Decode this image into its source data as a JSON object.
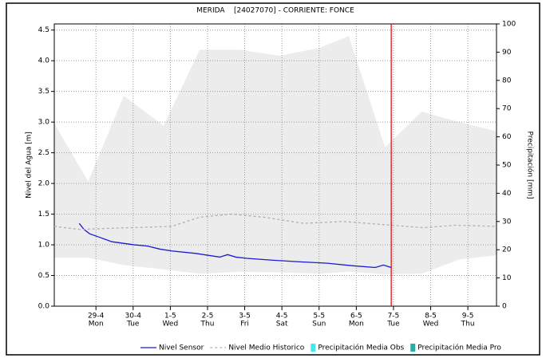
{
  "chart_data": {
    "type": "line",
    "title": "MERIDA    [24027070] - CORRIENTE: FONCE",
    "ylabel": "Nivel del Agua [m]",
    "y2label": "Precipitación [mm]",
    "xlim": [
      -1.12,
      10.77
    ],
    "xticks": [
      {
        "value": 0,
        "label": "29-4"
      },
      {
        "value": 1,
        "label": "30-4"
      },
      {
        "value": 2,
        "label": "1-5"
      },
      {
        "value": 3,
        "label": "2-5"
      },
      {
        "value": 4,
        "label": "3-5"
      },
      {
        "value": 5,
        "label": "4-5"
      },
      {
        "value": 6,
        "label": "5-5"
      },
      {
        "value": 7,
        "label": "6-5"
      },
      {
        "value": 8,
        "label": "7-5"
      },
      {
        "value": 9,
        "label": "8-5"
      },
      {
        "value": 10,
        "label": "9-5"
      }
    ],
    "weekdays": [
      "Mon",
      "Tue",
      "Wed",
      "Thu",
      "Fri",
      "Sat",
      "Sun",
      "Mon",
      "Tue",
      "Wed",
      "Thu"
    ],
    "ylim": [
      0,
      4.6
    ],
    "yticks": [
      {
        "value": 0,
        "label": "0.0"
      },
      0.5,
      {
        "value": 1,
        "label": "1.0"
      },
      1.5,
      {
        "value": 2,
        "label": "2.0"
      },
      2.5,
      {
        "value": 3,
        "label": "3.0"
      },
      3.5,
      {
        "value": 4,
        "label": "4.0"
      },
      4.5
    ],
    "y2lim": [
      0,
      100
    ],
    "y2ticks": [
      0,
      10,
      20,
      30,
      40,
      50,
      60,
      70,
      80,
      90,
      100
    ],
    "grid": true,
    "band": {
      "color": "#ececec",
      "x": [
        -1.12,
        -0.21,
        0.75,
        1.82,
        2.79,
        3.86,
        4.94,
        6.01,
        6.8,
        7.77,
        8.76,
        9.76,
        10.77
      ],
      "upper": [
        2.98,
        2.03,
        3.43,
        2.94,
        4.18,
        4.18,
        4.08,
        4.21,
        4.4,
        2.59,
        3.17,
        3.0,
        2.85
      ],
      "lower": [
        0.79,
        0.79,
        0.67,
        0.6,
        0.53,
        0.56,
        0.55,
        0.53,
        0.56,
        0.52,
        0.53,
        0.76,
        0.83
      ]
    },
    "now_marker": {
      "x": 7.94,
      "color": "#e00000"
    },
    "series": [
      {
        "name": "Nivel Sensor",
        "color": "#1a1ad0",
        "style": "solid",
        "x": [
          -0.45,
          -0.32,
          -0.17,
          0.11,
          0.43,
          1.03,
          1.39,
          1.72,
          2.04,
          2.68,
          3.33,
          3.54,
          3.76,
          4.06,
          4.72,
          5.58,
          6.22,
          6.87,
          7.51,
          7.73,
          7.94
        ],
        "values": [
          1.35,
          1.25,
          1.18,
          1.12,
          1.05,
          1.0,
          0.98,
          0.93,
          0.9,
          0.86,
          0.8,
          0.84,
          0.8,
          0.78,
          0.75,
          0.72,
          0.7,
          0.66,
          0.63,
          0.67,
          0.63
        ]
      },
      {
        "name": "Nivel Medio Historico",
        "color": "#b0b0b0",
        "style": "dashed",
        "x": [
          -1.12,
          -0.43,
          0.43,
          2.04,
          2.79,
          3.65,
          4.51,
          5.58,
          6.65,
          7.94,
          8.8,
          9.66,
          10.77
        ],
        "values": [
          1.3,
          1.25,
          1.27,
          1.3,
          1.45,
          1.5,
          1.45,
          1.35,
          1.38,
          1.32,
          1.28,
          1.32,
          1.3
        ]
      },
      {
        "name": "Precipitación Media Obs",
        "color": "#40e8f0",
        "style": "box",
        "axis": "y2",
        "x": [],
        "values": []
      },
      {
        "name": "Precipitación Media Pro",
        "color": "#20b0a8",
        "style": "box",
        "axis": "y2",
        "x": [],
        "values": []
      }
    ]
  }
}
